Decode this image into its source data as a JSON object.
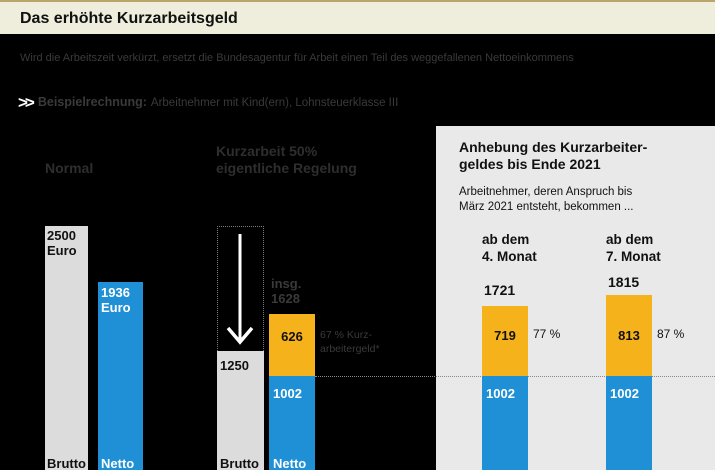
{
  "title": "Das erhöhte Kurzarbeitsgeld",
  "subtitle": "Wird die Arbeitszeit verkürzt, ersetzt die Bundesagentur für Arbeit einen Teil des weggefallenen Nettoeinkommens",
  "example": {
    "label": "Beispielrechnung:",
    "text": "Arbeitnehmer mit Kind(ern), Lohnsteuerklasse III"
  },
  "columns": {
    "normal": "Normal",
    "kurz": {
      "line1": "Kurzarbeit 50%",
      "line2": "eigentliche Regelung"
    }
  },
  "panel": {
    "title_line1": "Anhebung des Kurzarbeiter-",
    "title_line2": "geldes bis Ende 2021",
    "note_line1": "Arbeitnehmer, deren Anspruch bis",
    "note_line2": "März 2021 entsteht, bekommen ...",
    "period1": {
      "line1": "ab dem",
      "line2": "4. Monat"
    },
    "period2": {
      "line1": "ab dem",
      "line2": "7. Monat"
    }
  },
  "colors": {
    "brutto": "#dcdcdc",
    "netto": "#1f8fd6",
    "kurzarbeitergeld": "#f6b21a",
    "panel": "#e9e9e9"
  },
  "chart_data": {
    "type": "bar",
    "unit": "Euro",
    "bars": [
      {
        "group": "Normal",
        "label": "Brutto",
        "value": 2500,
        "value_text": "2500",
        "unit_text": "Euro"
      },
      {
        "group": "Normal",
        "label": "Netto",
        "value": 1936,
        "value_text": "1936",
        "unit_text": "Euro"
      },
      {
        "group": "Kurzarbeit 50%",
        "label": "Brutto",
        "value": 1250,
        "value_text": "1250"
      },
      {
        "group": "Kurzarbeit 50%",
        "label": "Netto",
        "netto": 1002,
        "kurzarbeitergeld": 626,
        "total": 1628,
        "netto_text": "1002",
        "kug_text": "626",
        "total_prefix": "insg.",
        "total_text": "1628",
        "pct_line1": "67 % Kurz-",
        "pct_line2": "arbeitergeld*"
      },
      {
        "group": "ab dem 4. Monat",
        "netto": 1002,
        "kurzarbeitergeld": 719,
        "total": 1721,
        "netto_text": "1002",
        "kug_text": "719",
        "total_text": "1721",
        "pct_text": "77 %"
      },
      {
        "group": "ab dem 7. Monat",
        "netto": 1002,
        "kurzarbeitergeld": 813,
        "total": 1815,
        "netto_text": "1002",
        "kug_text": "813",
        "total_text": "1815",
        "pct_text": "87 %"
      }
    ]
  }
}
